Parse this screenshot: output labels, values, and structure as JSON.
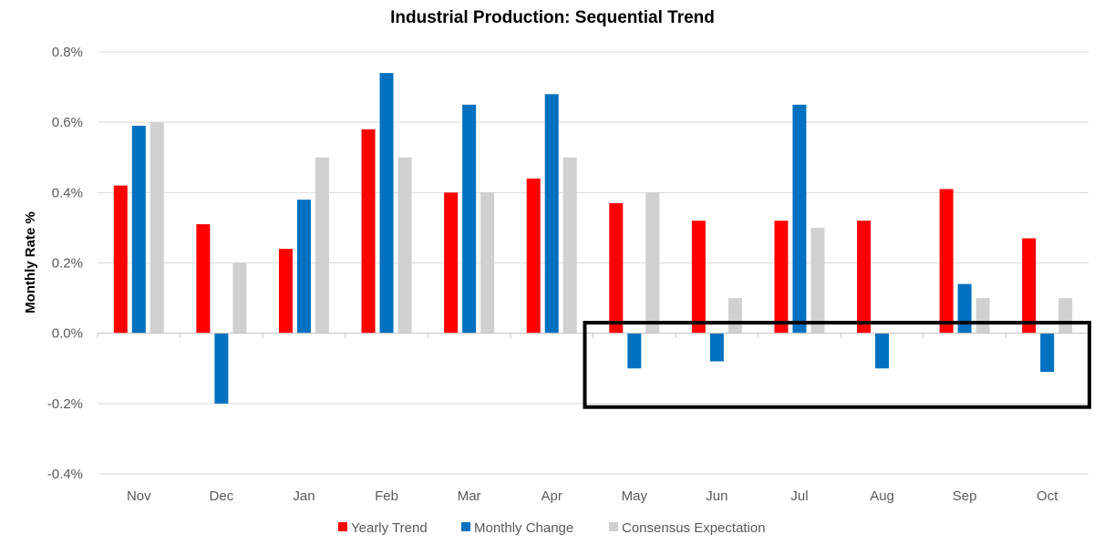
{
  "chart_data": {
    "type": "bar",
    "title": "Industrial Production: Sequential Trend",
    "ylabel": "Monthly Rate %",
    "xlabel": "",
    "categories": [
      "Nov",
      "Dec",
      "Jan",
      "Feb",
      "Mar",
      "Apr",
      "May",
      "Jun",
      "Jul",
      "Aug",
      "Sep",
      "Oct"
    ],
    "ylim": [
      -0.4,
      0.8
    ],
    "yticks": [
      0.8,
      0.6,
      0.4,
      0.2,
      0.0,
      -0.2,
      -0.4
    ],
    "ytick_labels": [
      "0.8%",
      "0.6%",
      "0.4%",
      "0.2%",
      "0.0%",
      "-0.2%",
      "-0.4%"
    ],
    "grid": true,
    "legend_position": "bottom",
    "series": [
      {
        "name": "Yearly Trend",
        "color": "#ff0000",
        "values": [
          0.42,
          0.31,
          0.24,
          0.58,
          0.4,
          0.44,
          0.37,
          0.32,
          0.32,
          0.32,
          0.41,
          0.27
        ]
      },
      {
        "name": "Monthly Change",
        "color": "#0070c0",
        "values": [
          0.59,
          -0.2,
          0.38,
          0.74,
          0.65,
          0.68,
          -0.1,
          -0.08,
          0.65,
          -0.1,
          0.14,
          -0.11
        ]
      },
      {
        "name": "Consensus Expectation",
        "color": "#d0d0d0",
        "values": [
          0.6,
          0.2,
          0.5,
          0.5,
          0.4,
          0.5,
          0.4,
          0.1,
          0.3,
          0.0,
          0.1,
          0.1
        ]
      }
    ],
    "annotation": {
      "type": "highlight-box",
      "from_category": "May",
      "to_category": "Oct",
      "y_range": [
        -0.21,
        0.03
      ]
    }
  }
}
